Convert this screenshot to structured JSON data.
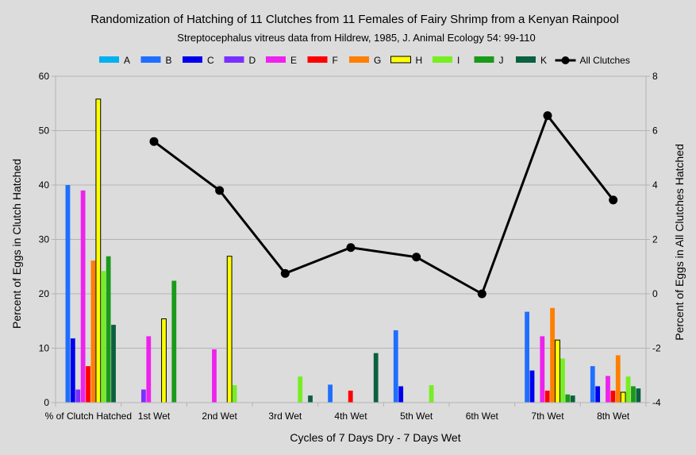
{
  "chart_data": {
    "type": "bar",
    "title": "Randomization of Hatching of 11 Clutches from 11 Females of Fairy Shrimp from a Kenyan Rainpool",
    "subtitle": "Streptocephalus vitreus data from Hildrew, 1985, J. Animal Ecology 54: 99-110",
    "xlabel": "Cycles of 7 Days Dry - 7 Days Wet",
    "ylabel": "Percent of Eggs in Clutch Hatched",
    "y2label": "Percent of Eggs in All Clutches Hatched",
    "ylim": [
      0,
      60
    ],
    "y_ticks": [
      0,
      10,
      20,
      30,
      40,
      50,
      60
    ],
    "y2lim": [
      -4,
      8
    ],
    "y2_ticks": [
      -4,
      -2,
      0,
      2,
      4,
      6,
      8
    ],
    "grid": "horizontal",
    "legend_position": "top",
    "categories": [
      "% of Clutch Hatched",
      "1st Wet",
      "2nd Wet",
      "3rd Wet",
      "4th Wet",
      "5th Wet",
      "6th Wet",
      "7th Wet",
      "8th Wet"
    ],
    "series": [
      {
        "name": "A",
        "color": "#00b0f0",
        "values": [
          0,
          0,
          0,
          0,
          0,
          0,
          0,
          0,
          0
        ]
      },
      {
        "name": "B",
        "color": "#1f6fff",
        "values": [
          40,
          0,
          0,
          0,
          3.3,
          13.3,
          0,
          16.7,
          6.7
        ]
      },
      {
        "name": "C",
        "color": "#0000ee",
        "values": [
          11.8,
          0,
          0,
          0,
          0,
          3,
          0,
          5.9,
          3
        ]
      },
      {
        "name": "D",
        "color": "#7b2fff",
        "values": [
          2.4,
          2.4,
          0,
          0,
          0,
          0,
          0,
          0,
          0
        ]
      },
      {
        "name": "E",
        "color": "#ee22ee",
        "values": [
          39,
          12.2,
          9.8,
          0,
          0,
          0,
          0,
          12.2,
          4.9
        ]
      },
      {
        "name": "F",
        "color": "#ff0000",
        "values": [
          6.7,
          0,
          0,
          0,
          2.2,
          0,
          0,
          2.2,
          2.2
        ]
      },
      {
        "name": "G",
        "color": "#ff7f00",
        "values": [
          26.1,
          0,
          0,
          0,
          0,
          0,
          0,
          17.4,
          8.7
        ]
      },
      {
        "name": "H",
        "color": "#ffff00",
        "values": [
          55.8,
          15.4,
          26.9,
          0,
          0,
          0,
          0,
          11.5,
          1.9
        ]
      },
      {
        "name": "I",
        "color": "#77ee22",
        "values": [
          24.2,
          0,
          3.2,
          4.8,
          0,
          3.2,
          0,
          8.1,
          4.8
        ]
      },
      {
        "name": "J",
        "color": "#1a9a1a",
        "values": [
          26.9,
          22.4,
          0,
          0,
          0,
          0,
          0,
          1.5,
          3
        ]
      },
      {
        "name": "K",
        "color": "#0b6040",
        "values": [
          14.3,
          0,
          0,
          1.3,
          9.1,
          0,
          0,
          1.3,
          2.6
        ]
      }
    ],
    "line_series": {
      "name": "All Clutches",
      "axis": "right",
      "color": "#000000",
      "x_categories": [
        "1st Wet",
        "2nd Wet",
        "3rd Wet",
        "4th Wet",
        "5th Wet",
        "6th Wet",
        "7th Wet",
        "8th Wet"
      ],
      "values": [
        5.6,
        3.8,
        0.75,
        1.7,
        1.35,
        0,
        6.55,
        3.45
      ]
    }
  }
}
